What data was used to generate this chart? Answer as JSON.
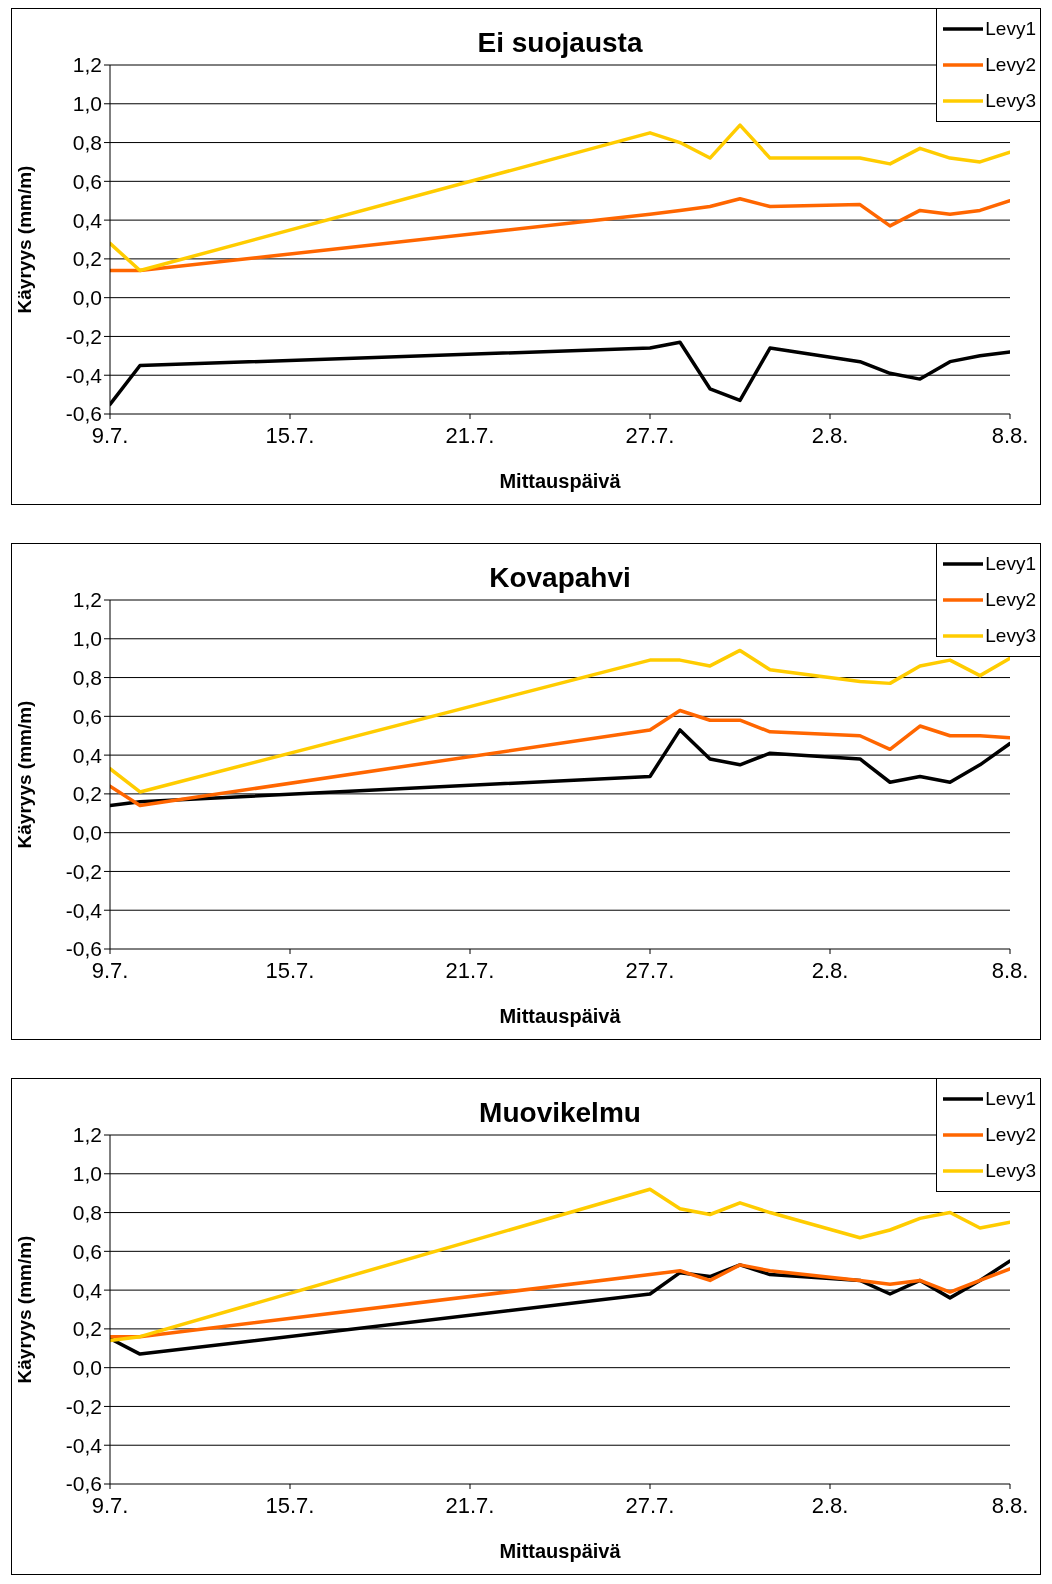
{
  "chart_data": [
    {
      "type": "line",
      "title": "Ei suojausta",
      "xlabel": "Mittauspäivä",
      "ylabel": "Käyryys (mm/m)",
      "x": [
        "--07-09",
        "--07-10",
        "--07-27",
        "--07-28",
        "--07-29",
        "--07-30",
        "--07-31",
        "--08-03",
        "--08-04",
        "--08-05",
        "--08-06",
        "--08-07",
        "--08-08"
      ],
      "series": [
        {
          "name": "Levy1",
          "color": "#000000",
          "values": [
            -0.55,
            -0.35,
            -0.26,
            -0.23,
            -0.47,
            -0.53,
            -0.26,
            -0.33,
            -0.39,
            -0.42,
            -0.33,
            -0.3,
            -0.28
          ]
        },
        {
          "name": "Levy2",
          "color": "#ff6600",
          "values": [
            0.14,
            0.14,
            0.43,
            0.45,
            0.47,
            0.51,
            0.47,
            0.48,
            0.37,
            0.45,
            0.43,
            0.45,
            0.5
          ]
        },
        {
          "name": "Levy3",
          "color": "#ffcc00",
          "values": [
            0.28,
            0.14,
            0.85,
            0.8,
            0.72,
            0.89,
            0.72,
            0.72,
            0.69,
            0.77,
            0.72,
            0.7,
            0.75
          ]
        }
      ],
      "xlim": [
        "--07-09",
        "--08-08"
      ],
      "xticks": [
        {
          "value": "--07-09",
          "label": "9.7."
        },
        {
          "value": "--07-15",
          "label": "15.7."
        },
        {
          "value": "--07-21",
          "label": "21.7."
        },
        {
          "value": "--07-27",
          "label": "27.7."
        },
        {
          "value": "--08-02",
          "label": "2.8."
        },
        {
          "value": "--08-08",
          "label": "8.8."
        }
      ],
      "ylim": [
        -0.6,
        1.2
      ],
      "yticks": [
        {
          "value": -0.6,
          "label": "-0,6"
        },
        {
          "value": -0.4,
          "label": "-0,4"
        },
        {
          "value": -0.2,
          "label": "-0,2"
        },
        {
          "value": 0,
          "label": "0,0"
        },
        {
          "value": 0.2,
          "label": "0,2"
        },
        {
          "value": 0.4,
          "label": "0,4"
        },
        {
          "value": 0.6,
          "label": "0,6"
        },
        {
          "value": 0.8,
          "label": "0,8"
        },
        {
          "value": 1.0,
          "label": "1,0"
        },
        {
          "value": 1.2,
          "label": "1,2"
        }
      ],
      "grid": "y",
      "legend": "top right"
    },
    {
      "type": "line",
      "title": "Kovapahvi",
      "xlabel": "Mittauspäivä",
      "ylabel": "Käyryys (mm/m)",
      "x": [
        "--07-09",
        "--07-10",
        "--07-27",
        "--07-28",
        "--07-29",
        "--07-30",
        "--07-31",
        "--08-03",
        "--08-04",
        "--08-05",
        "--08-06",
        "--08-07",
        "--08-08"
      ],
      "series": [
        {
          "name": "Levy1",
          "color": "#000000",
          "values": [
            0.14,
            0.16,
            0.29,
            0.53,
            0.38,
            0.35,
            0.41,
            0.38,
            0.26,
            0.29,
            0.26,
            0.35,
            0.46
          ]
        },
        {
          "name": "Levy2",
          "color": "#ff6600",
          "values": [
            0.24,
            0.14,
            0.53,
            0.63,
            0.58,
            0.58,
            0.52,
            0.5,
            0.43,
            0.55,
            0.5,
            0.5,
            0.49
          ]
        },
        {
          "name": "Levy3",
          "color": "#ffcc00",
          "values": [
            0.33,
            0.21,
            0.89,
            0.89,
            0.86,
            0.94,
            0.84,
            0.78,
            0.77,
            0.86,
            0.89,
            0.81,
            0.9
          ]
        }
      ],
      "xlim": [
        "--07-09",
        "--08-08"
      ],
      "xticks": [
        {
          "value": "--07-09",
          "label": "9.7."
        },
        {
          "value": "--07-15",
          "label": "15.7."
        },
        {
          "value": "--07-21",
          "label": "21.7."
        },
        {
          "value": "--07-27",
          "label": "27.7."
        },
        {
          "value": "--08-02",
          "label": "2.8."
        },
        {
          "value": "--08-08",
          "label": "8.8."
        }
      ],
      "ylim": [
        -0.6,
        1.2
      ],
      "yticks": [
        {
          "value": -0.6,
          "label": "-0,6"
        },
        {
          "value": -0.4,
          "label": "-0,4"
        },
        {
          "value": -0.2,
          "label": "-0,2"
        },
        {
          "value": 0,
          "label": "0,0"
        },
        {
          "value": 0.2,
          "label": "0,2"
        },
        {
          "value": 0.4,
          "label": "0,4"
        },
        {
          "value": 0.6,
          "label": "0,6"
        },
        {
          "value": 0.8,
          "label": "0,8"
        },
        {
          "value": 1.0,
          "label": "1,0"
        },
        {
          "value": 1.2,
          "label": "1,2"
        }
      ],
      "grid": "y",
      "legend": "top right"
    },
    {
      "type": "line",
      "title": "Muovikelmu",
      "xlabel": "Mittauspäivä",
      "ylabel": "Käyryys (mm/m)",
      "x": [
        "--07-09",
        "--07-10",
        "--07-27",
        "--07-28",
        "--07-29",
        "--07-30",
        "--07-31",
        "--08-03",
        "--08-04",
        "--08-05",
        "--08-06",
        "--08-07",
        "--08-08"
      ],
      "series": [
        {
          "name": "Levy1",
          "color": "#000000",
          "values": [
            0.15,
            0.07,
            0.38,
            0.49,
            0.47,
            0.53,
            0.48,
            0.45,
            0.38,
            0.45,
            0.36,
            0.45,
            0.55
          ]
        },
        {
          "name": "Levy2",
          "color": "#ff6600",
          "values": [
            0.16,
            0.16,
            0.48,
            0.5,
            0.45,
            0.53,
            0.5,
            0.45,
            0.43,
            0.45,
            0.39,
            0.45,
            0.51
          ]
        },
        {
          "name": "Levy3",
          "color": "#ffcc00",
          "values": [
            0.14,
            0.16,
            0.92,
            0.82,
            0.79,
            0.85,
            0.8,
            0.67,
            0.71,
            0.77,
            0.8,
            0.72,
            0.75
          ]
        }
      ],
      "xlim": [
        "--07-09",
        "--08-08"
      ],
      "xticks": [
        {
          "value": "--07-09",
          "label": "9.7."
        },
        {
          "value": "--07-15",
          "label": "15.7."
        },
        {
          "value": "--07-21",
          "label": "21.7."
        },
        {
          "value": "--07-27",
          "label": "27.7."
        },
        {
          "value": "--08-02",
          "label": "2.8."
        },
        {
          "value": "--08-08",
          "label": "8.8."
        }
      ],
      "ylim": [
        -0.6,
        1.2
      ],
      "yticks": [
        {
          "value": -0.6,
          "label": "-0,6"
        },
        {
          "value": -0.4,
          "label": "-0,4"
        },
        {
          "value": -0.2,
          "label": "-0,2"
        },
        {
          "value": 0,
          "label": "0,0"
        },
        {
          "value": 0.2,
          "label": "0,2"
        },
        {
          "value": 0.4,
          "label": "0,4"
        },
        {
          "value": 0.6,
          "label": "0,6"
        },
        {
          "value": 0.8,
          "label": "0,8"
        },
        {
          "value": 1.0,
          "label": "1,0"
        },
        {
          "value": 1.2,
          "label": "1,2"
        }
      ],
      "grid": "y",
      "legend": "top right"
    }
  ]
}
